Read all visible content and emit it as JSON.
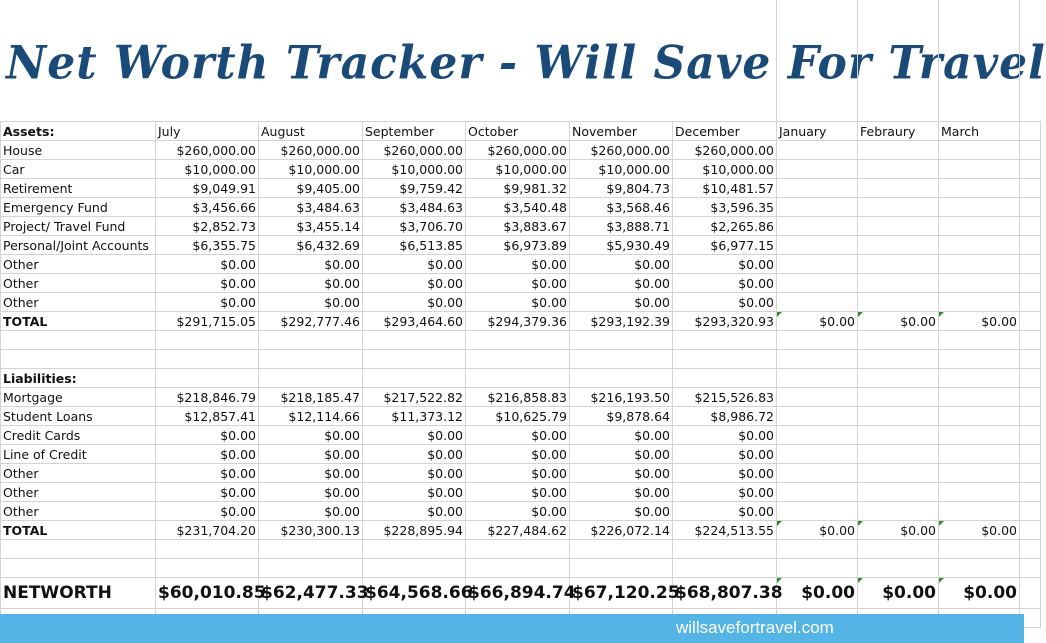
{
  "title": "Net Worth Tracker - Will Save For Travel",
  "columns": [
    "",
    "July",
    "August",
    "September",
    "October",
    "November",
    "December",
    "January",
    "Febraury",
    "March"
  ],
  "assets": {
    "header": "Assets:",
    "rows": [
      {
        "label": "House",
        "values": [
          "$260,000.00",
          "$260,000.00",
          "$260,000.00",
          "$260,000.00",
          "$260,000.00",
          "$260,000.00"
        ]
      },
      {
        "label": "Car",
        "values": [
          "$10,000.00",
          "$10,000.00",
          "$10,000.00",
          "$10,000.00",
          "$10,000.00",
          "$10,000.00"
        ]
      },
      {
        "label": "Retirement",
        "values": [
          "$9,049.91",
          "$9,405.00",
          "$9,759.42",
          "$9,981.32",
          "$9,804.73",
          "$10,481.57"
        ]
      },
      {
        "label": "Emergency Fund",
        "values": [
          "$3,456.66",
          "$3,484.63",
          "$3,484.63",
          "$3,540.48",
          "$3,568.46",
          "$3,596.35"
        ]
      },
      {
        "label": "Project/ Travel Fund",
        "values": [
          "$2,852.73",
          "$3,455.14",
          "$3,706.70",
          "$3,883.67",
          "$3,888.71",
          "$2,265.86"
        ]
      },
      {
        "label": "Personal/Joint Accounts",
        "values": [
          "$6,355.75",
          "$6,432.69",
          "$6,513.85",
          "$6,973.89",
          "$5,930.49",
          "$6,977.15"
        ]
      },
      {
        "label": "Other",
        "values": [
          "$0.00",
          "$0.00",
          "$0.00",
          "$0.00",
          "$0.00",
          "$0.00"
        ]
      },
      {
        "label": "Other",
        "values": [
          "$0.00",
          "$0.00",
          "$0.00",
          "$0.00",
          "$0.00",
          "$0.00"
        ]
      },
      {
        "label": "Other",
        "values": [
          "$0.00",
          "$0.00",
          "$0.00",
          "$0.00",
          "$0.00",
          "$0.00"
        ]
      }
    ],
    "total": {
      "label": "TOTAL",
      "values": [
        "$291,715.05",
        "$292,777.46",
        "$293,464.60",
        "$294,379.36",
        "$293,192.39",
        "$293,320.93",
        "$0.00",
        "$0.00",
        "$0.00"
      ]
    }
  },
  "liabilities": {
    "header": "Liabilities:",
    "rows": [
      {
        "label": "Mortgage",
        "values": [
          "$218,846.79",
          "$218,185.47",
          "$217,522.82",
          "$216,858.83",
          "$216,193.50",
          "$215,526.83"
        ]
      },
      {
        "label": "Student Loans",
        "values": [
          "$12,857.41",
          "$12,114.66",
          "$11,373.12",
          "$10,625.79",
          "$9,878.64",
          "$8,986.72"
        ]
      },
      {
        "label": "Credit Cards",
        "values": [
          "$0.00",
          "$0.00",
          "$0.00",
          "$0.00",
          "$0.00",
          "$0.00"
        ]
      },
      {
        "label": "Line of Credit",
        "values": [
          "$0.00",
          "$0.00",
          "$0.00",
          "$0.00",
          "$0.00",
          "$0.00"
        ]
      },
      {
        "label": "Other",
        "values": [
          "$0.00",
          "$0.00",
          "$0.00",
          "$0.00",
          "$0.00",
          "$0.00"
        ]
      },
      {
        "label": "Other",
        "values": [
          "$0.00",
          "$0.00",
          "$0.00",
          "$0.00",
          "$0.00",
          "$0.00"
        ]
      },
      {
        "label": "Other",
        "values": [
          "$0.00",
          "$0.00",
          "$0.00",
          "$0.00",
          "$0.00",
          "$0.00"
        ]
      }
    ],
    "total": {
      "label": "TOTAL",
      "values": [
        "$231,704.20",
        "$230,300.13",
        "$228,895.94",
        "$227,484.62",
        "$226,072.14",
        "$224,513.55",
        "$0.00",
        "$0.00",
        "$0.00"
      ]
    }
  },
  "networth": {
    "label": "NETWORTH",
    "values": [
      "$60,010.85",
      "$62,477.33",
      "$64,568.66",
      "$66,894.74",
      "$67,120.25",
      "$68,807.38",
      "$0.00",
      "$0.00",
      "$0.00"
    ]
  },
  "footer": {
    "text": "willsavefortravel.com",
    "color": "#54b4e6"
  }
}
